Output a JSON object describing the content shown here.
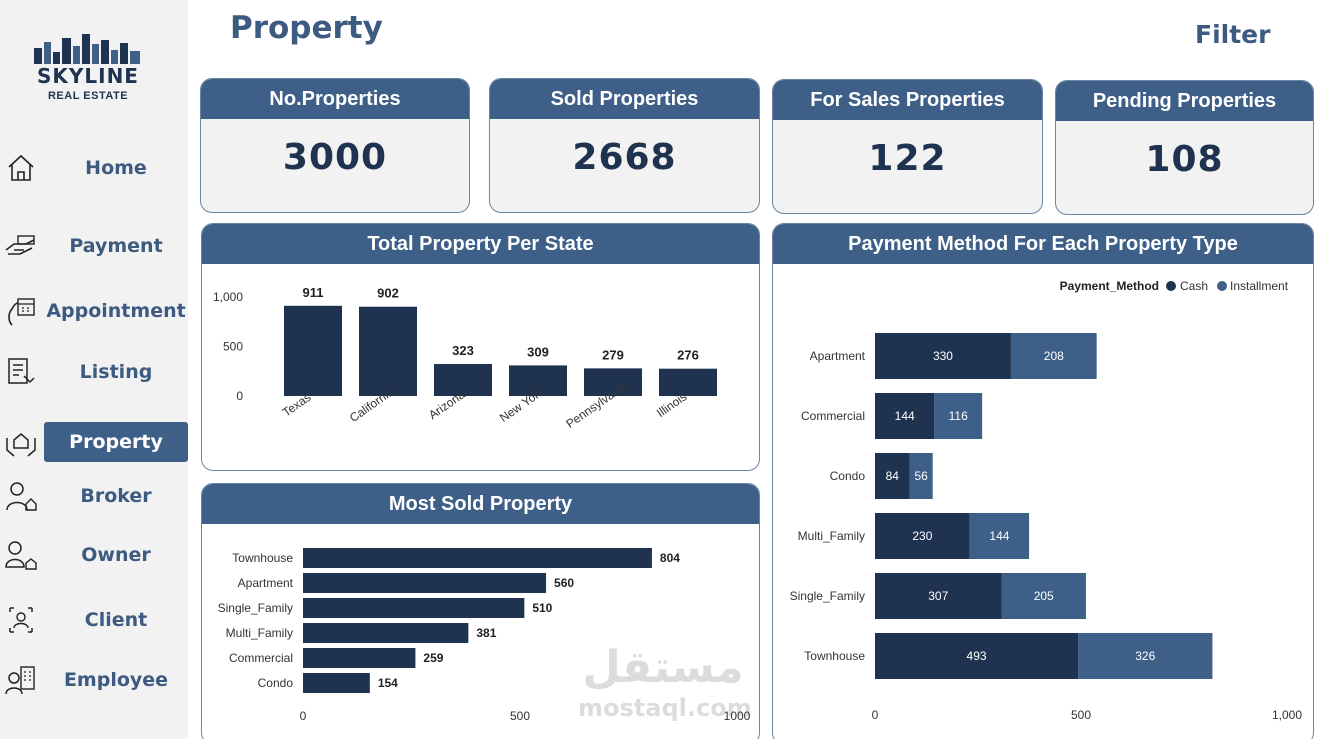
{
  "app": {
    "logo_title": "SKYLINE",
    "logo_subtitle": "REAL ESTATE",
    "page_title": "Property",
    "filter_label": "Filter"
  },
  "nav": [
    {
      "label": "Home",
      "icon": "home-icon"
    },
    {
      "label": "Payment",
      "icon": "payment-hand-icon"
    },
    {
      "label": "Appointment",
      "icon": "appointment-calendar-icon"
    },
    {
      "label": "Listing",
      "icon": "listing-icon"
    },
    {
      "label": "Property",
      "icon": "property-house-hand-icon",
      "active": true
    },
    {
      "label": "Broker",
      "icon": "broker-icon"
    },
    {
      "label": "Owner",
      "icon": "owner-icon"
    },
    {
      "label": "Client",
      "icon": "client-icon"
    },
    {
      "label": "Employee",
      "icon": "employee-icon"
    }
  ],
  "kpis": [
    {
      "title": "No.Properties",
      "value": "3000"
    },
    {
      "title": "Sold Properties",
      "value": "2668"
    },
    {
      "title": "For Sales Properties",
      "value": "122"
    },
    {
      "title": "Pending Properties",
      "value": "108"
    }
  ],
  "watermark": {
    "arabic": "مستقل",
    "latin": "mostaql.com"
  },
  "colors": {
    "dark": "#1f3350",
    "accent": "#3d5f88",
    "installment": "#3d5f88",
    "cash": "#1f3350"
  },
  "chart_data": [
    {
      "type": "bar",
      "title": "Total Property Per State",
      "categories": [
        "Texas",
        "California",
        "Arizona",
        "New York",
        "Pennsylvania",
        "Illinois"
      ],
      "values": [
        911,
        902,
        323,
        309,
        279,
        276
      ],
      "yticks": [
        "1,000",
        "500",
        "0"
      ],
      "ylim": [
        0,
        1000
      ]
    },
    {
      "type": "bar",
      "orientation": "horizontal",
      "title": "Most Sold Property",
      "categories": [
        "Townhouse",
        "Apartment",
        "Single_Family",
        "Multi_Family",
        "Commercial",
        "Condo"
      ],
      "values": [
        804,
        560,
        510,
        381,
        259,
        154
      ],
      "xticks": [
        "0",
        "500",
        "1000"
      ],
      "xlim": [
        0,
        1000
      ]
    },
    {
      "type": "bar",
      "orientation": "horizontal",
      "stacked": true,
      "title": "Payment Method For Each Property Type",
      "legend_title": "Payment_Method",
      "categories": [
        "Apartment",
        "Commercial",
        "Condo",
        "Multi_Family",
        "Single_Family",
        "Townhouse"
      ],
      "series": [
        {
          "name": "Cash",
          "values": [
            330,
            144,
            84,
            230,
            307,
            493
          ]
        },
        {
          "name": "Installment",
          "values": [
            208,
            116,
            56,
            144,
            205,
            326
          ]
        }
      ],
      "xticks": [
        "0",
        "500",
        "1,000"
      ],
      "xlim": [
        0,
        1000
      ]
    }
  ]
}
